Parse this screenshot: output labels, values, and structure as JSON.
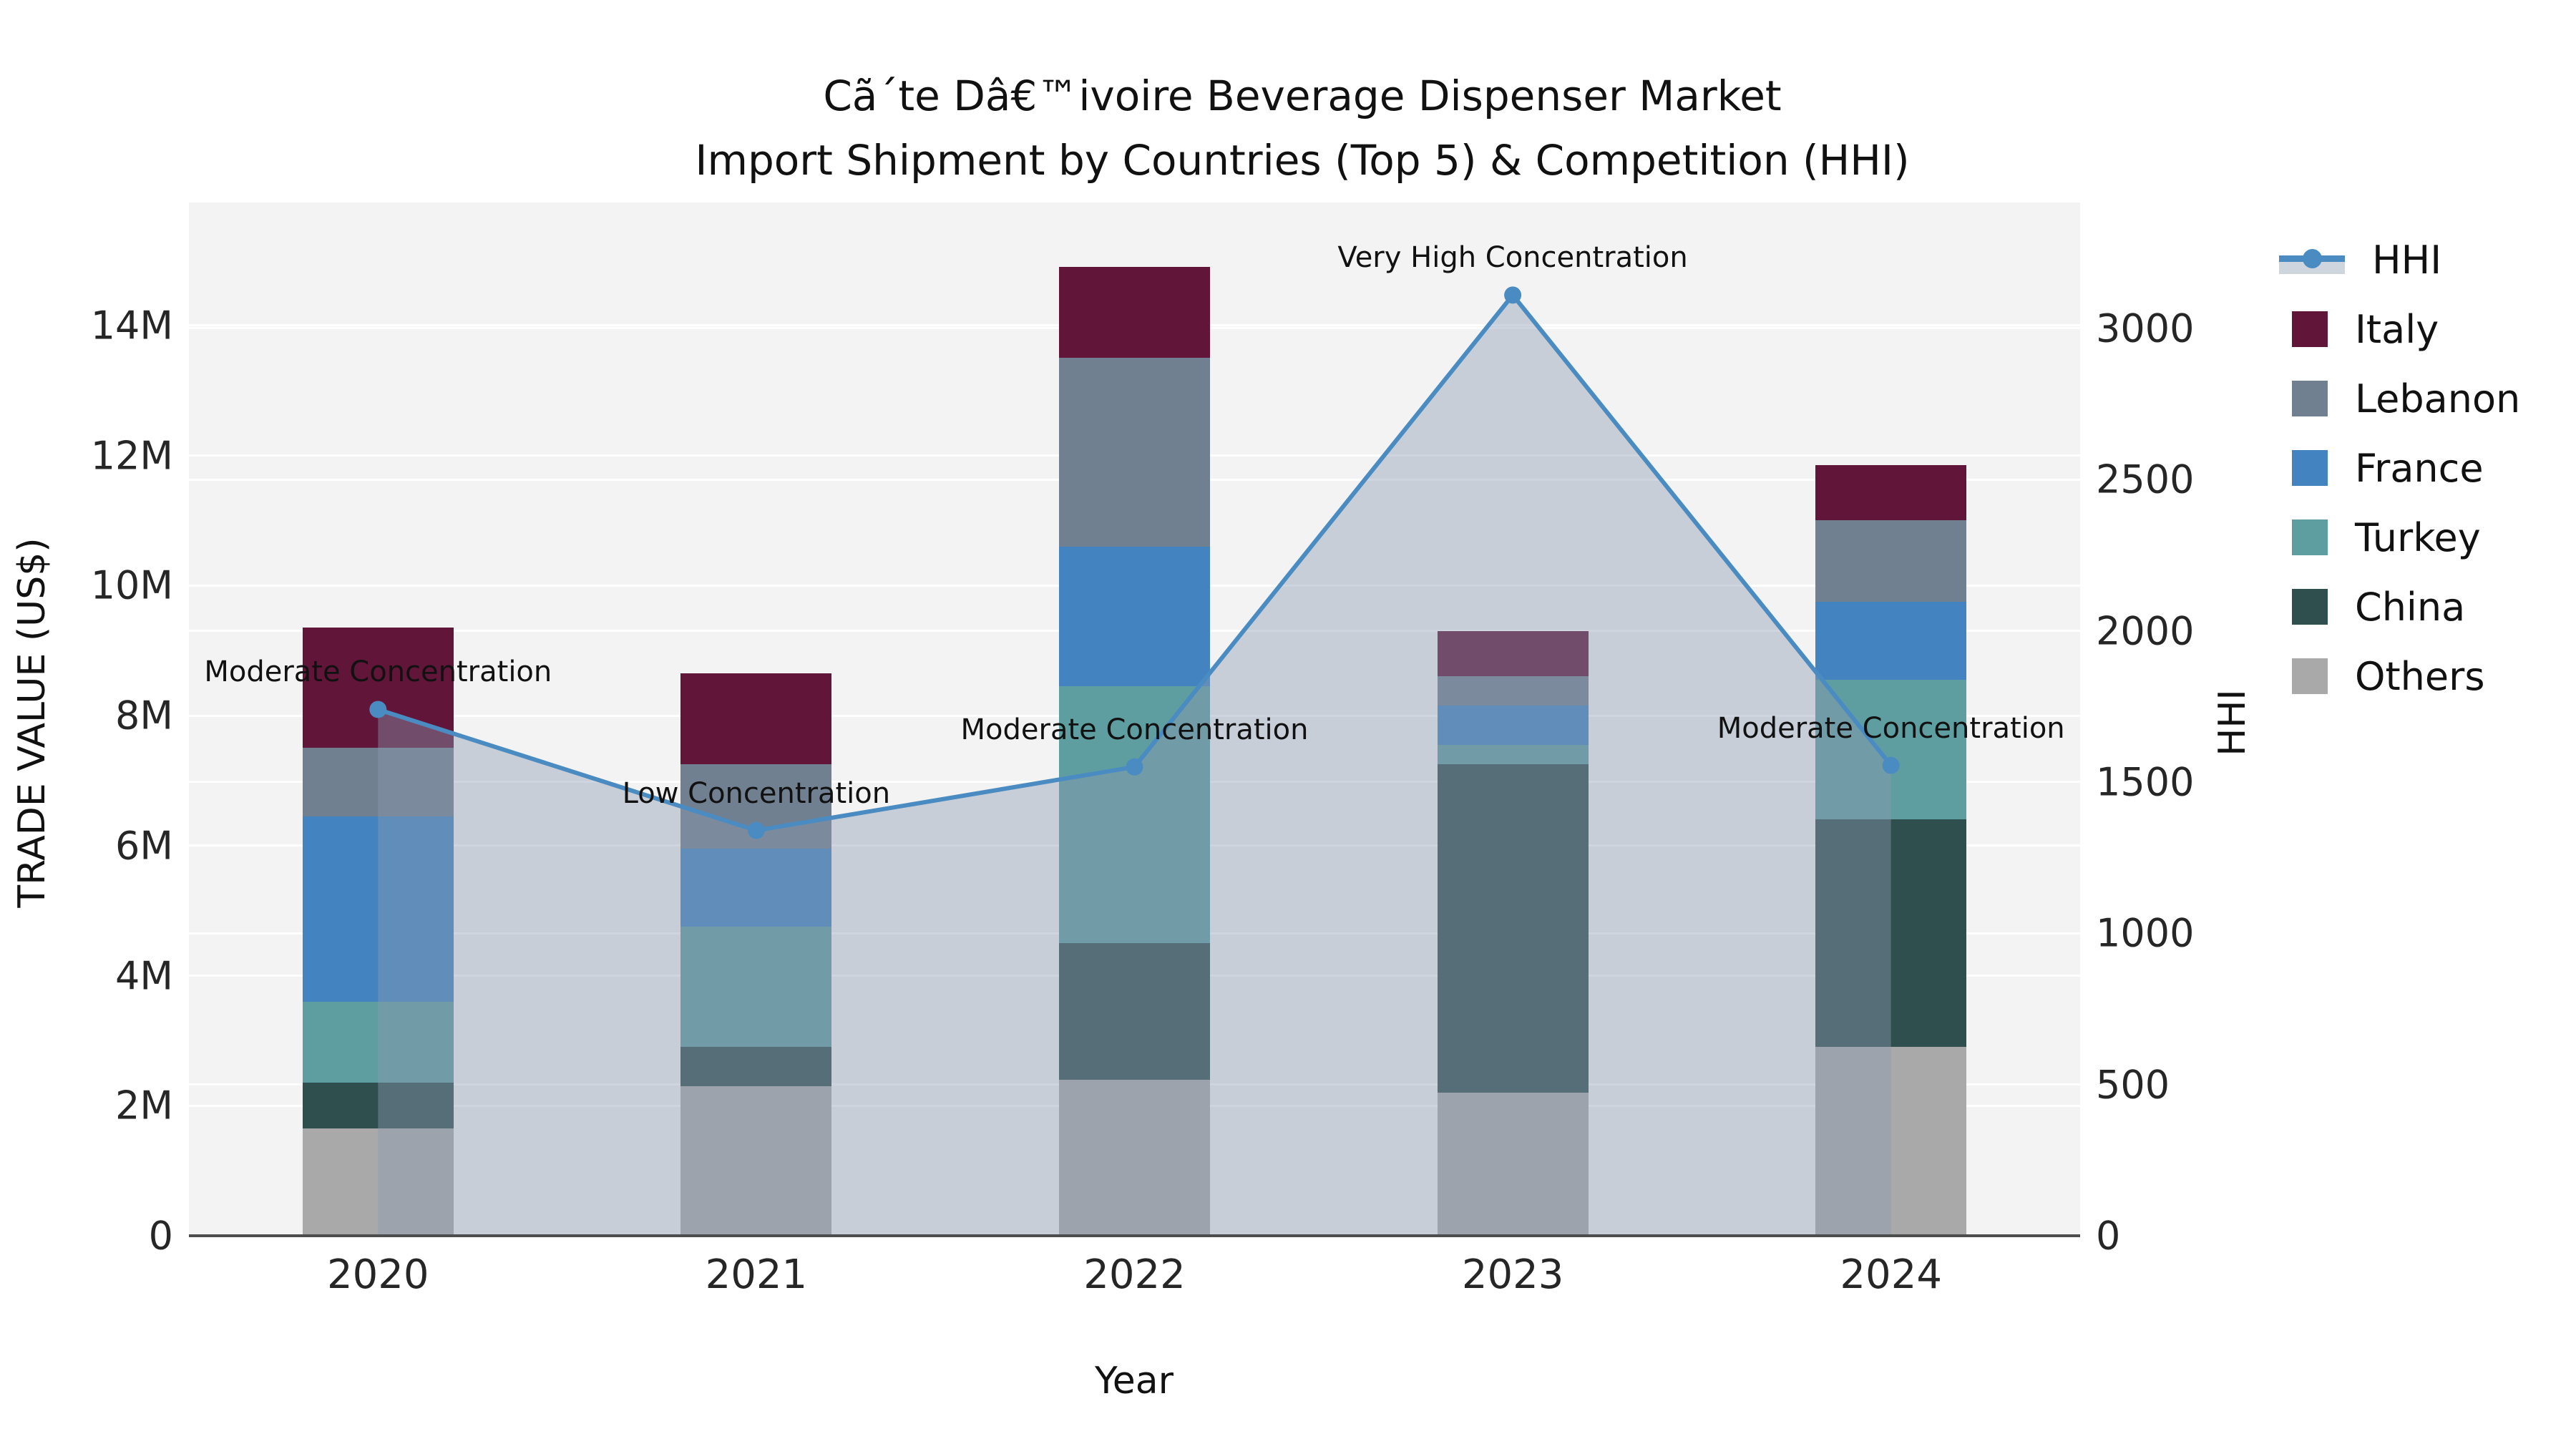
{
  "chart_data": {
    "type": "combo: stacked bar (left axis, trade value) + line with area fill (right axis, HHI)",
    "title": "Cã´te Dâ€™ivoire Beverage Dispenser Market",
    "subtitle": "Import Shipment by Countries (Top 5) & Competition (HHI)",
    "xlabel": "Year",
    "ylabel_left": "TRADE VALUE (US$)",
    "ylabel_right": "HHI",
    "x": [
      "2020",
      "2021",
      "2022",
      "2023",
      "2024"
    ],
    "stack_order_bottom_to_top": [
      "Others",
      "China",
      "Turkey",
      "France",
      "Lebanon",
      "Italy"
    ],
    "series": [
      {
        "name": "Others",
        "color": "#a9a9a9",
        "values": [
          1650000,
          2300000,
          2400000,
          2200000,
          2900000
        ]
      },
      {
        "name": "China",
        "color": "#2f4f4f",
        "values": [
          700000,
          600000,
          2100000,
          5050000,
          3500000
        ]
      },
      {
        "name": "Turkey",
        "color": "#5f9ea0",
        "values": [
          1250000,
          1850000,
          3950000,
          300000,
          2150000
        ]
      },
      {
        "name": "France",
        "color": "#4383c0",
        "values": [
          2850000,
          1200000,
          2150000,
          600000,
          1200000
        ]
      },
      {
        "name": "Lebanon",
        "color": "#708090",
        "values": [
          1050000,
          1300000,
          2900000,
          450000,
          1250000
        ]
      },
      {
        "name": "Italy",
        "color": "#611539",
        "values": [
          1850000,
          1400000,
          1400000,
          700000,
          850000
        ]
      }
    ],
    "bar_totals_usd": [
      9350000,
      8650000,
      14900000,
      9300000,
      11850000
    ],
    "hhi": {
      "name": "HHI",
      "values": [
        1740,
        1340,
        1550,
        3110,
        1555
      ],
      "line_color": "#4a8cc2",
      "marker_color": "#4a8cc2",
      "area_fill": "rgba(139,155,176,0.42)",
      "annotations": [
        "Moderate Concentration",
        "Low Concentration",
        "Moderate Concentration",
        "Very High Concentration",
        "Moderate Concentration"
      ]
    },
    "yticks_left": {
      "labels": [
        "0",
        "2M",
        "4M",
        "6M",
        "8M",
        "10M",
        "12M",
        "14M"
      ],
      "values": [
        0,
        2000000,
        4000000,
        6000000,
        8000000,
        10000000,
        12000000,
        14000000
      ]
    },
    "yticks_right": {
      "labels": [
        "0",
        "500",
        "1000",
        "1500",
        "2000",
        "2500",
        "3000"
      ],
      "values": [
        0,
        500,
        1000,
        1500,
        2000,
        2500,
        3000
      ]
    },
    "ylim_left": [
      0,
      15890000
    ],
    "ylim_right": [
      0,
      3416
    ],
    "legend": [
      "HHI",
      "Italy",
      "Lebanon",
      "France",
      "Turkey",
      "China",
      "Others"
    ],
    "legend_position": "right",
    "grid": "on (white horizontal gridlines for both y axes, drawn below bars)",
    "plot_background": "#f3f3f3"
  }
}
